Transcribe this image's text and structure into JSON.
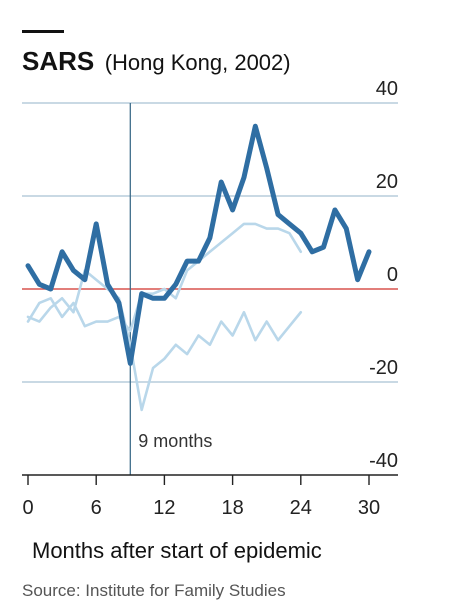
{
  "chart_data": {
    "type": "line",
    "title": "SARS",
    "subtitle": "(Hong Kong, 2002)",
    "xlabel": "Months after start of epidemic",
    "ylabel": "",
    "source": "Source: Institute for Family Studies",
    "xlim": [
      0,
      30
    ],
    "ylim": [
      -40,
      40
    ],
    "xticks": [
      0,
      6,
      12,
      18,
      24,
      30
    ],
    "yticks": [
      40,
      20,
      0,
      -20,
      -40
    ],
    "ytick_labels": [
      "40",
      "20",
      "0",
      "-20",
      "-40"
    ],
    "grid": true,
    "zero_line_color": "#d9534f",
    "annotation": {
      "x": 9,
      "label": "9 months"
    },
    "series": [
      {
        "color": "#2f6ea3",
        "x": [
          0,
          1,
          2,
          3,
          4,
          5,
          6,
          7,
          8,
          9,
          10,
          11,
          12,
          13,
          14,
          15,
          16,
          17,
          18,
          19,
          20,
          21,
          22,
          23,
          24,
          25,
          26,
          27,
          28,
          29,
          30
        ],
        "y": [
          5,
          1,
          0,
          8,
          4,
          2,
          14,
          1,
          -3,
          -16,
          -1,
          -2,
          -2,
          1,
          6,
          6,
          11,
          23,
          17,
          24,
          35,
          26,
          16,
          14,
          12,
          8,
          9,
          17,
          13,
          2,
          8
        ]
      },
      {
        "color": "#b9d7ea",
        "x": [
          0,
          1,
          2,
          3,
          4,
          5,
          6,
          7,
          8,
          9,
          10,
          11,
          12,
          13,
          14,
          15,
          16,
          17,
          18,
          19,
          20,
          21,
          22,
          23,
          24
        ],
        "y": [
          -6,
          -7,
          -4,
          -2,
          -5,
          4,
          2,
          0,
          -2,
          -12,
          -26,
          -17,
          -15,
          -12,
          -14,
          -10,
          -12,
          -7,
          -10,
          -5,
          -11,
          -7,
          -11,
          -8,
          -5
        ]
      },
      {
        "color": "#b9d7ea",
        "x": [
          0,
          1,
          2,
          3,
          4,
          5,
          6,
          7,
          8,
          9,
          10,
          11,
          12,
          13,
          14,
          15,
          16,
          17,
          18,
          19,
          20,
          21,
          22,
          23,
          24
        ],
        "y": [
          -7,
          -3,
          -2,
          -6,
          -3,
          -8,
          -7,
          -7,
          -6,
          -9,
          -1,
          -1,
          0,
          -2,
          4,
          6,
          8,
          10,
          12,
          14,
          14,
          13,
          13,
          12,
          8
        ]
      }
    ]
  }
}
